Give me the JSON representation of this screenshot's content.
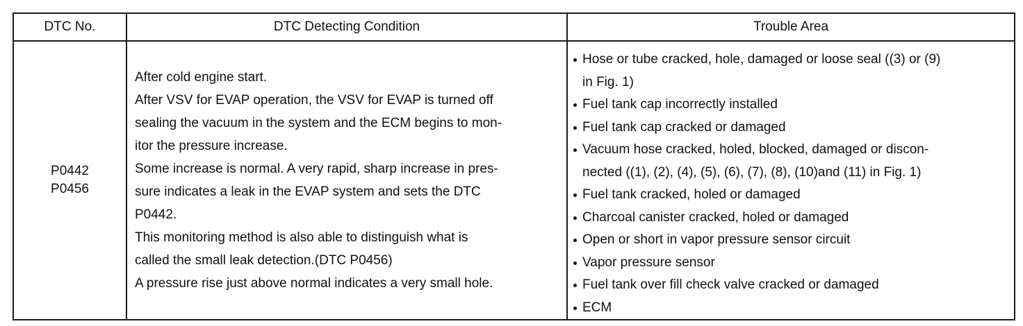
{
  "headers": {
    "dtc_no": "DTC No.",
    "condition": "DTC Detecting Condition",
    "trouble_area": "Trouble Area"
  },
  "dtc_codes": [
    "P0442",
    "P0456"
  ],
  "condition_lines": [
    "After cold engine start.",
    "After VSV for EVAP operation, the VSV for EVAP is turned off",
    "sealing the vacuum in the system and the ECM begins to mon-",
    "itor the pressure increase.",
    "Some increase is normal. A very rapid, sharp increase in pres-",
    "sure indicates a leak in the EVAP system and sets the DTC",
    "P0442.",
    "This monitoring method is also able to distinguish what is",
    "called the small leak detection.(DTC P0456)",
    "A pressure rise just above normal indicates a very small hole."
  ],
  "trouble_items": [
    {
      "lines": [
        "Hose or tube cracked, hole, damaged or loose seal ((3) or (9)",
        "in Fig. 1)"
      ]
    },
    {
      "lines": [
        "Fuel tank cap incorrectly installed"
      ]
    },
    {
      "lines": [
        "Fuel tank cap cracked or damaged"
      ]
    },
    {
      "lines": [
        "Vacuum hose cracked, holed, blocked, damaged or discon-",
        "nected ((1), (2), (4), (5), (6), (7), (8), (10)and (11) in Fig. 1)"
      ]
    },
    {
      "lines": [
        "Fuel tank cracked, holed or damaged"
      ]
    },
    {
      "lines": [
        "Charcoal canister cracked, holed or damaged"
      ]
    },
    {
      "lines": [
        "Open or short in vapor pressure sensor circuit"
      ]
    },
    {
      "lines": [
        "Vapor pressure sensor"
      ]
    },
    {
      "lines": [
        "Fuel tank over fill check valve cracked or damaged"
      ]
    },
    {
      "lines": [
        "ECM"
      ]
    }
  ]
}
